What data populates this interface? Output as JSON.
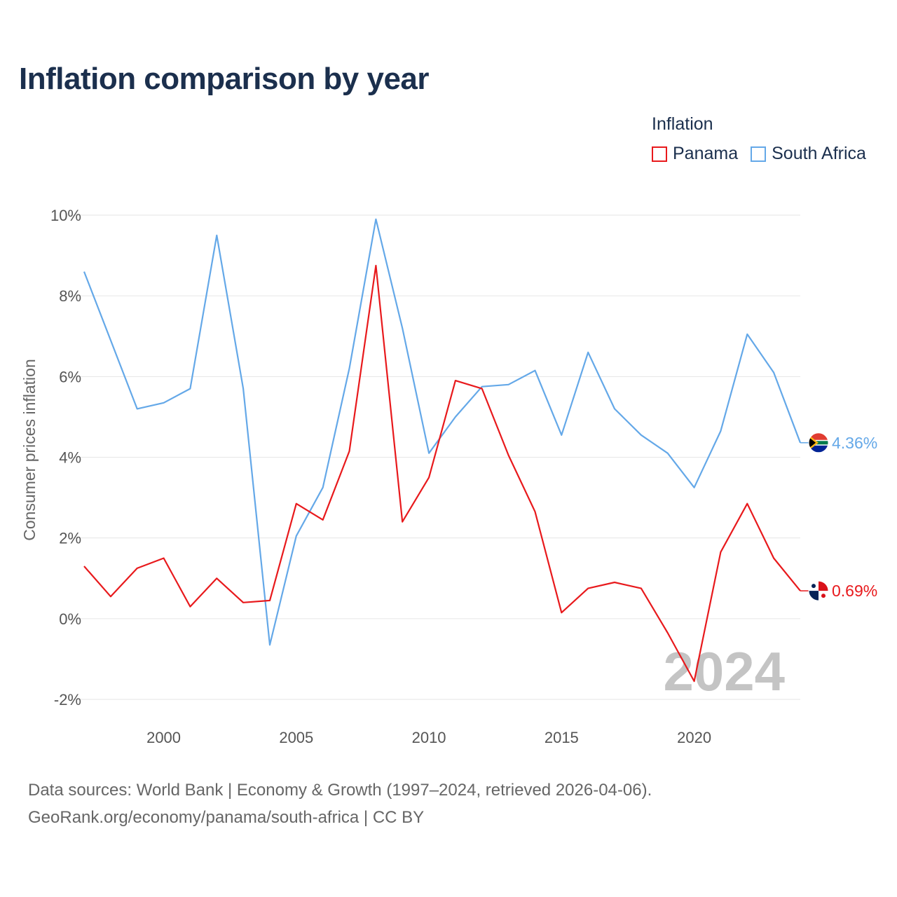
{
  "title": "Inflation comparison by year",
  "legend": {
    "title": "Inflation",
    "items": [
      {
        "label": "Panama",
        "color": "#e8191c"
      },
      {
        "label": "South Africa",
        "color": "#64a8e8"
      }
    ]
  },
  "footer": {
    "line1": "Data sources: World Bank | Economy & Growth (1997–2024, retrieved 2026-04-06).",
    "line2": "GeoRank.org/economy/panama/south-africa | CC BY"
  },
  "chart_data": {
    "type": "line",
    "ylabel": "Consumer prices inflation",
    "xlabel": "",
    "xlim": [
      1997,
      2024
    ],
    "ylim": [
      -2,
      10
    ],
    "yticks": [
      10,
      8,
      6,
      4,
      2,
      0,
      -2
    ],
    "ytick_labels": [
      "10%",
      "8%",
      "6%",
      "4%",
      "2%",
      "0%",
      "-2%"
    ],
    "xticks": [
      2000,
      2005,
      2010,
      2015,
      2020
    ],
    "xtick_labels": [
      "2000",
      "2005",
      "2010",
      "2015",
      "2020"
    ],
    "year_watermark": "2024",
    "x": [
      1997,
      1998,
      1999,
      2000,
      2001,
      2002,
      2003,
      2004,
      2005,
      2006,
      2007,
      2008,
      2009,
      2010,
      2011,
      2012,
      2013,
      2014,
      2015,
      2016,
      2017,
      2018,
      2019,
      2020,
      2021,
      2022,
      2023,
      2024
    ],
    "series": [
      {
        "name": "South Africa",
        "color": "#64a8e8",
        "end_label": "4.36%",
        "flag": "south-africa-flag-icon",
        "values": [
          8.6,
          6.9,
          5.2,
          5.35,
          5.7,
          9.5,
          5.7,
          -0.65,
          2.05,
          3.25,
          6.2,
          9.9,
          7.2,
          4.1,
          5.0,
          5.75,
          5.8,
          6.15,
          4.55,
          6.6,
          5.2,
          4.55,
          4.1,
          3.25,
          4.65,
          7.05,
          6.1,
          4.36
        ]
      },
      {
        "name": "Panama",
        "color": "#e8191c",
        "end_label": "0.69%",
        "flag": "panama-flag-icon",
        "values": [
          1.3,
          0.55,
          1.25,
          1.5,
          0.3,
          1.0,
          0.4,
          0.45,
          2.85,
          2.45,
          4.15,
          8.75,
          2.4,
          3.5,
          5.9,
          5.7,
          4.05,
          2.65,
          0.15,
          0.75,
          0.9,
          0.75,
          -0.35,
          -1.55,
          1.65,
          2.85,
          1.5,
          0.69
        ]
      }
    ]
  }
}
